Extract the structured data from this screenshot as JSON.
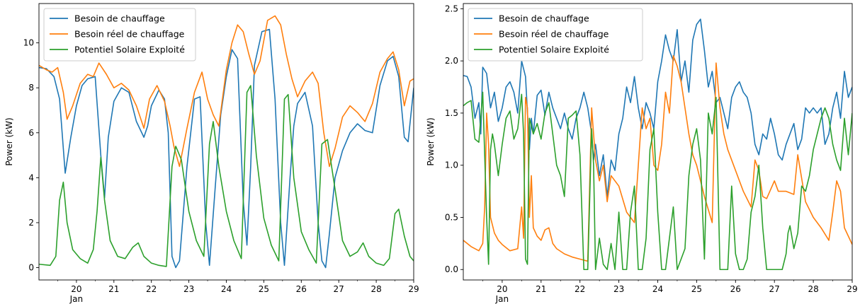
{
  "legend": [
    "Besoin de chauffage",
    "Besoin réel de chauffage",
    "Potentiel Solaire Exploité"
  ],
  "colors": {
    "blue": "#1f77b4",
    "orange": "#ff7f0e",
    "green": "#2ca02c"
  },
  "chart_data": [
    {
      "type": "line",
      "ylabel": "Power (kW)",
      "xlabel": "",
      "xlim": [
        19,
        29
      ],
      "ylim": [
        -0.55,
        11.75
      ],
      "yticks": [
        0,
        2,
        4,
        6,
        8,
        10
      ],
      "xticks": [
        20,
        21,
        22,
        23,
        24,
        25,
        26,
        27,
        28,
        29
      ],
      "xtick_labels": [
        "20",
        "21",
        "22",
        "23",
        "24",
        "25",
        "26",
        "27",
        "28",
        "29"
      ],
      "x_sublabel": "Jan",
      "legend_position": "upper-left",
      "series": [
        {
          "name": "Besoin de chauffage",
          "color": "#1f77b4",
          "x": [
            19.0,
            19.2,
            19.4,
            19.55,
            19.7,
            19.85,
            20.0,
            20.15,
            20.3,
            20.5,
            20.65,
            20.75,
            20.85,
            21.0,
            21.2,
            21.4,
            21.6,
            21.8,
            21.9,
            22.0,
            22.2,
            22.35,
            22.45,
            22.55,
            22.65,
            22.75,
            22.95,
            23.15,
            23.3,
            23.45,
            23.55,
            23.7,
            23.85,
            24.0,
            24.15,
            24.3,
            24.45,
            24.55,
            24.65,
            24.75,
            24.95,
            25.15,
            25.3,
            25.45,
            25.55,
            25.7,
            25.8,
            25.9,
            26.1,
            26.3,
            26.45,
            26.55,
            26.65,
            26.75,
            26.9,
            27.1,
            27.3,
            27.5,
            27.7,
            27.9,
            28.1,
            28.3,
            28.45,
            28.6,
            28.75,
            28.85,
            29.0
          ],
          "y": [
            8.9,
            8.85,
            8.5,
            7.5,
            4.2,
            5.8,
            7.2,
            8.1,
            8.4,
            8.5,
            5.0,
            3.1,
            5.8,
            7.4,
            8.0,
            7.8,
            6.5,
            5.8,
            6.3,
            7.2,
            7.9,
            7.5,
            6.0,
            0.5,
            0.0,
            0.3,
            4.5,
            7.5,
            7.6,
            2.0,
            0.1,
            3.5,
            6.8,
            8.5,
            9.7,
            9.3,
            3.0,
            1.0,
            4.5,
            9.0,
            10.5,
            10.6,
            7.5,
            2.0,
            0.1,
            4.0,
            6.3,
            7.3,
            7.8,
            6.3,
            2.0,
            0.3,
            0.0,
            1.5,
            4.0,
            5.2,
            6.0,
            6.4,
            6.1,
            6.0,
            8.1,
            9.2,
            9.4,
            8.5,
            5.8,
            5.6,
            8.0
          ]
        },
        {
          "name": "Besoin réel de chauffage",
          "color": "#ff7f0e",
          "x": [
            19.0,
            19.2,
            19.35,
            19.5,
            19.65,
            19.75,
            19.9,
            20.1,
            20.3,
            20.45,
            20.6,
            20.8,
            21.0,
            21.2,
            21.4,
            21.6,
            21.8,
            21.95,
            22.15,
            22.35,
            22.5,
            22.6,
            22.75,
            22.95,
            23.15,
            23.35,
            23.5,
            23.65,
            23.8,
            24.0,
            24.15,
            24.3,
            24.45,
            24.6,
            24.75,
            24.9,
            25.1,
            25.3,
            25.45,
            25.6,
            25.75,
            25.9,
            26.1,
            26.3,
            26.45,
            26.6,
            26.75,
            26.9,
            27.1,
            27.3,
            27.5,
            27.7,
            27.9,
            28.1,
            28.3,
            28.45,
            28.6,
            28.75,
            28.9,
            29.0
          ],
          "y": [
            9.0,
            8.8,
            8.7,
            8.9,
            7.8,
            6.6,
            7.2,
            8.2,
            8.6,
            8.5,
            9.1,
            8.6,
            8.0,
            8.2,
            7.9,
            7.2,
            6.2,
            7.5,
            8.1,
            7.4,
            6.3,
            5.4,
            4.5,
            6.2,
            7.8,
            8.7,
            7.5,
            6.8,
            6.3,
            8.8,
            10.0,
            10.8,
            10.5,
            9.5,
            8.6,
            9.2,
            11.0,
            11.2,
            10.8,
            9.5,
            8.4,
            7.6,
            8.3,
            8.7,
            8.2,
            6.0,
            4.5,
            5.3,
            6.7,
            7.2,
            6.9,
            6.5,
            7.3,
            8.7,
            9.3,
            9.6,
            8.8,
            7.2,
            8.3,
            8.4
          ]
        },
        {
          "name": "Potentiel Solaire Exploité",
          "color": "#2ca02c",
          "x": [
            19.0,
            19.3,
            19.45,
            19.55,
            19.65,
            19.75,
            19.9,
            20.1,
            20.3,
            20.45,
            20.55,
            20.65,
            20.75,
            20.9,
            21.1,
            21.3,
            21.5,
            21.65,
            21.8,
            22.0,
            22.2,
            22.4,
            22.55,
            22.65,
            22.8,
            23.0,
            23.2,
            23.4,
            23.55,
            23.65,
            23.8,
            24.0,
            24.2,
            24.4,
            24.55,
            24.65,
            24.8,
            25.0,
            25.2,
            25.4,
            25.55,
            25.65,
            25.8,
            26.0,
            26.2,
            26.4,
            26.55,
            26.7,
            26.9,
            27.1,
            27.3,
            27.5,
            27.65,
            27.8,
            28.0,
            28.2,
            28.35,
            28.5,
            28.6,
            28.75,
            28.9,
            29.0
          ],
          "y": [
            0.15,
            0.1,
            0.5,
            3.0,
            3.8,
            2.0,
            0.8,
            0.4,
            0.2,
            0.8,
            2.5,
            4.9,
            3.0,
            1.2,
            0.5,
            0.4,
            0.9,
            1.1,
            0.5,
            0.2,
            0.1,
            0.05,
            4.5,
            5.4,
            4.8,
            2.5,
            1.2,
            0.5,
            5.5,
            6.5,
            4.5,
            2.5,
            1.2,
            0.4,
            7.8,
            8.1,
            5.0,
            2.2,
            1.0,
            0.3,
            7.5,
            7.7,
            4.0,
            1.6,
            0.8,
            0.2,
            5.5,
            5.7,
            3.5,
            1.2,
            0.5,
            0.7,
            1.1,
            0.5,
            0.2,
            0.1,
            0.4,
            2.4,
            2.6,
            1.4,
            0.5,
            0.3
          ]
        }
      ]
    },
    {
      "type": "line",
      "ylabel": "Power (kW)",
      "xlabel": "",
      "xlim": [
        19,
        29
      ],
      "ylim": [
        -0.1,
        2.55
      ],
      "yticks": [
        0.0,
        0.5,
        1.0,
        1.5,
        2.0,
        2.5
      ],
      "ytick_labels": [
        "0.0",
        "0.5",
        "1.0",
        "1.5",
        "2.0",
        "2.5"
      ],
      "xticks": [
        20,
        21,
        22,
        23,
        24,
        25,
        26,
        27,
        28,
        29
      ],
      "xtick_labels": [
        "20",
        "21",
        "22",
        "23",
        "24",
        "25",
        "26",
        "27",
        "28",
        "29"
      ],
      "x_sublabel": "Jan",
      "legend_position": "upper-left",
      "series": [
        {
          "name": "Besoin de chauffage",
          "color": "#1f77b4",
          "x": [
            19.0,
            19.1,
            19.2,
            19.3,
            19.4,
            19.45,
            19.5,
            19.6,
            19.7,
            19.8,
            19.9,
            20.0,
            20.1,
            20.2,
            20.3,
            20.4,
            20.5,
            20.6,
            20.7,
            20.75,
            20.8,
            20.9,
            21.0,
            21.1,
            21.2,
            21.3,
            21.4,
            21.5,
            21.6,
            21.7,
            21.8,
            21.9,
            22.0,
            22.1,
            22.2,
            22.3,
            22.35,
            22.4,
            22.5,
            22.6,
            22.7,
            22.8,
            22.9,
            23.0,
            23.1,
            23.2,
            23.3,
            23.4,
            23.5,
            23.6,
            23.7,
            23.8,
            23.9,
            24.0,
            24.1,
            24.2,
            24.3,
            24.4,
            24.5,
            24.6,
            24.7,
            24.8,
            24.9,
            25.0,
            25.1,
            25.2,
            25.3,
            25.4,
            25.5,
            25.6,
            25.7,
            25.8,
            25.9,
            26.0,
            26.1,
            26.2,
            26.3,
            26.4,
            26.5,
            26.6,
            26.7,
            26.8,
            26.9,
            27.0,
            27.1,
            27.2,
            27.3,
            27.4,
            27.5,
            27.6,
            27.7,
            27.8,
            27.9,
            28.0,
            28.1,
            28.2,
            28.3,
            28.4,
            28.5,
            28.6,
            28.7,
            28.8,
            28.9,
            29.0
          ],
          "y": [
            1.86,
            1.85,
            1.75,
            1.45,
            1.6,
            1.3,
            1.94,
            1.88,
            1.55,
            1.7,
            1.42,
            1.55,
            1.75,
            1.8,
            1.7,
            1.5,
            2.0,
            1.85,
            1.15,
            1.45,
            1.3,
            1.67,
            1.72,
            1.48,
            1.7,
            1.55,
            1.45,
            1.35,
            1.5,
            1.35,
            1.25,
            1.45,
            1.55,
            1.7,
            1.55,
            1.3,
            1.05,
            1.2,
            0.9,
            1.1,
            0.7,
            1.05,
            0.95,
            1.3,
            1.45,
            1.75,
            1.6,
            1.85,
            1.55,
            1.35,
            1.6,
            1.5,
            1.35,
            1.8,
            2.0,
            2.25,
            2.1,
            2.0,
            2.3,
            1.8,
            2.0,
            1.7,
            2.2,
            2.35,
            2.4,
            2.1,
            1.75,
            1.9,
            1.6,
            1.65,
            1.5,
            1.35,
            1.65,
            1.75,
            1.8,
            1.7,
            1.65,
            1.5,
            1.2,
            1.1,
            1.3,
            1.25,
            1.45,
            1.3,
            1.1,
            1.05,
            1.2,
            1.3,
            1.4,
            1.15,
            1.25,
            1.55,
            1.5,
            1.55,
            1.5,
            1.55,
            1.2,
            1.3,
            1.55,
            1.7,
            1.45,
            1.9,
            1.65,
            1.75
          ]
        },
        {
          "name": "Besoin réel de chauffage",
          "color": "#ff7f0e",
          "x": [
            19.0,
            19.2,
            19.4,
            19.5,
            19.55,
            19.6,
            19.65,
            19.7,
            19.8,
            19.9,
            20.0,
            20.2,
            20.4,
            20.5,
            20.55,
            20.6,
            20.65,
            20.7,
            20.75,
            20.8,
            20.9,
            21.0,
            21.1,
            21.2,
            21.3,
            21.4,
            21.6,
            21.8,
            22.0,
            22.2,
            22.3,
            22.4,
            22.5,
            22.6,
            22.7,
            22.8,
            23.0,
            23.2,
            23.4,
            23.5,
            23.6,
            23.7,
            23.8,
            23.9,
            24.0,
            24.1,
            24.2,
            24.3,
            24.4,
            24.5,
            24.6,
            24.7,
            24.8,
            24.9,
            25.0,
            25.2,
            25.4,
            25.5,
            25.6,
            25.7,
            25.8,
            26.0,
            26.2,
            26.4,
            26.5,
            26.6,
            26.7,
            26.8,
            27.0,
            27.1,
            27.3,
            27.5,
            27.6,
            27.8,
            28.0,
            28.2,
            28.4,
            28.5,
            28.6,
            28.7,
            28.8,
            29.0
          ],
          "y": [
            0.28,
            0.22,
            0.18,
            0.25,
            0.6,
            1.5,
            1.2,
            0.5,
            0.35,
            0.28,
            0.24,
            0.18,
            0.2,
            0.6,
            0.3,
            1.65,
            1.55,
            0.5,
            0.9,
            0.4,
            0.32,
            0.28,
            0.38,
            0.4,
            0.25,
            0.2,
            0.15,
            0.12,
            0.1,
            0.08,
            1.55,
            1.05,
            0.85,
            1.0,
            0.65,
            0.9,
            0.8,
            0.55,
            0.45,
            1.0,
            1.55,
            1.35,
            1.45,
            1.0,
            0.95,
            1.2,
            1.7,
            1.5,
            2.05,
            1.95,
            1.8,
            1.55,
            1.3,
            1.1,
            1.0,
            0.7,
            0.45,
            1.98,
            1.55,
            1.3,
            1.15,
            0.95,
            0.75,
            0.6,
            1.05,
            0.95,
            0.7,
            0.68,
            0.85,
            0.75,
            0.75,
            0.72,
            1.1,
            0.65,
            0.5,
            0.4,
            0.28,
            0.55,
            0.85,
            0.75,
            0.4,
            0.24
          ]
        },
        {
          "name": "Potentiel Solaire Exploité",
          "color": "#2ca02c",
          "x": [
            19.0,
            19.1,
            19.2,
            19.3,
            19.4,
            19.5,
            19.6,
            19.65,
            19.7,
            19.75,
            19.8,
            19.9,
            20.0,
            20.1,
            20.2,
            20.3,
            20.4,
            20.5,
            20.55,
            20.6,
            20.65,
            20.7,
            20.8,
            20.9,
            21.0,
            21.1,
            21.2,
            21.3,
            21.4,
            21.5,
            21.6,
            21.7,
            21.8,
            21.9,
            22.0,
            22.1,
            22.2,
            22.3,
            22.35,
            22.4,
            22.5,
            22.6,
            22.7,
            22.8,
            22.9,
            23.0,
            23.1,
            23.2,
            23.3,
            23.4,
            23.5,
            23.55,
            23.6,
            23.7,
            23.8,
            23.9,
            24.0,
            24.1,
            24.2,
            24.3,
            24.4,
            24.5,
            24.6,
            24.7,
            24.8,
            24.9,
            25.0,
            25.1,
            25.2,
            25.3,
            25.4,
            25.5,
            25.6,
            25.7,
            25.8,
            25.9,
            26.0,
            26.1,
            26.2,
            26.3,
            26.4,
            26.5,
            26.6,
            26.7,
            26.8,
            26.9,
            27.0,
            27.1,
            27.2,
            27.3,
            27.35,
            27.4,
            27.5,
            27.6,
            27.7,
            27.8,
            27.9,
            28.0,
            28.1,
            28.2,
            28.3,
            28.4,
            28.5,
            28.6,
            28.7,
            28.8,
            28.9,
            29.0
          ],
          "y": [
            1.57,
            1.6,
            1.62,
            1.25,
            1.22,
            1.7,
            0.5,
            0.05,
            1.15,
            1.3,
            1.2,
            0.9,
            1.2,
            1.45,
            1.52,
            1.25,
            1.35,
            1.68,
            1.3,
            0.1,
            0.05,
            1.45,
            1.3,
            1.4,
            1.25,
            1.5,
            1.6,
            1.3,
            1.0,
            0.9,
            0.7,
            1.45,
            1.48,
            1.52,
            1.1,
            0.0,
            0.0,
            1.35,
            1.0,
            0.0,
            0.3,
            0.05,
            0.0,
            0.25,
            0.0,
            0.55,
            0.0,
            0.0,
            0.55,
            0.8,
            0.0,
            0.0,
            0.0,
            0.3,
            1.15,
            1.35,
            0.55,
            0.0,
            0.0,
            0.3,
            0.6,
            0.0,
            0.1,
            0.2,
            0.9,
            1.2,
            1.35,
            1.05,
            0.1,
            1.5,
            1.3,
            1.65,
            0.0,
            0.0,
            0.0,
            0.8,
            0.15,
            0.0,
            0.0,
            0.1,
            0.55,
            0.7,
            1.0,
            0.4,
            0.0,
            0.0,
            0.0,
            0.0,
            0.0,
            0.15,
            0.35,
            0.42,
            0.2,
            0.35,
            0.8,
            0.75,
            0.9,
            1.15,
            1.3,
            1.45,
            1.55,
            1.45,
            1.2,
            1.05,
            0.95,
            1.45,
            1.1,
            1.5
          ]
        }
      ]
    }
  ]
}
